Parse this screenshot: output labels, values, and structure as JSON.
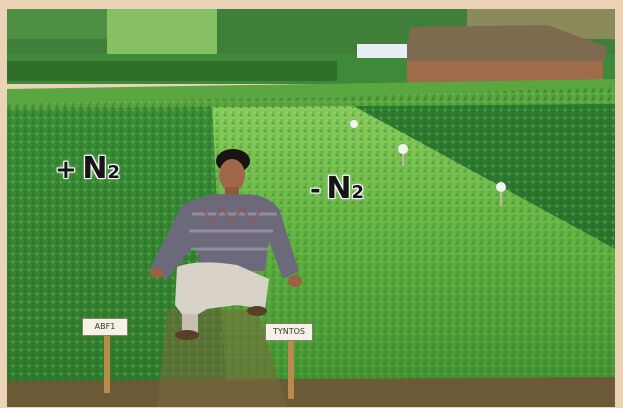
{
  "photo": {
    "labels": {
      "plus_sign": "+",
      "plus_n": "N",
      "plus_sub": "2",
      "minus_sign": "-",
      "minus_n": "N",
      "minus_sub": "2"
    },
    "stakes": {
      "left": "ABF1",
      "right": "TYNTOS"
    }
  },
  "colors": {
    "frame": "#ead3b6",
    "field_green": "#3f9a3a",
    "light_green": "#7cc351",
    "soil": "#7a5a34",
    "thatch": "#8c7a5c"
  }
}
